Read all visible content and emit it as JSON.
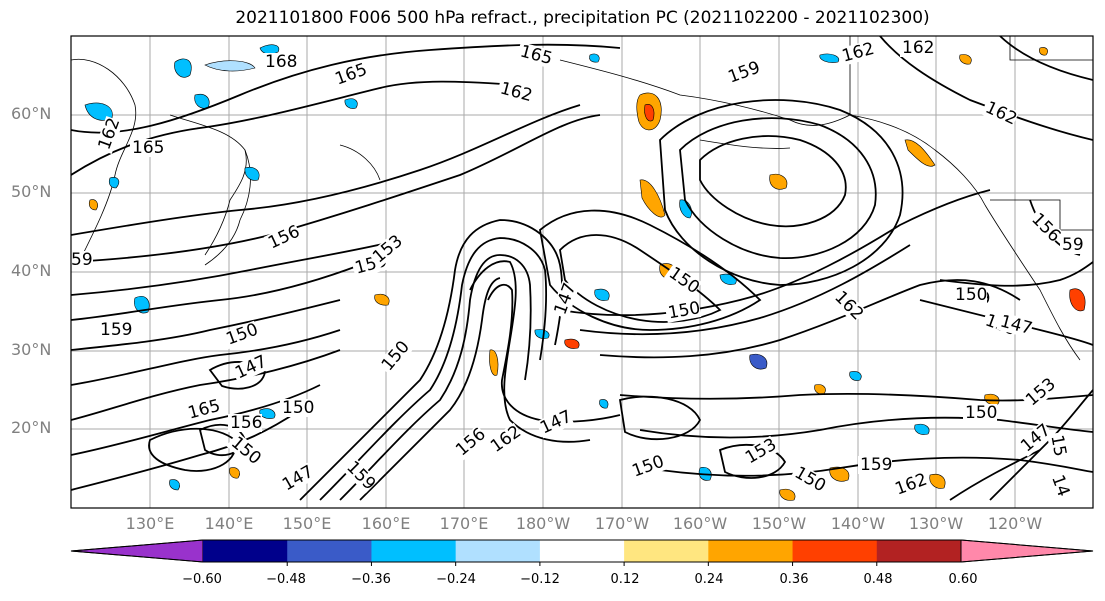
{
  "title": "2021101800 F006 500 hPa refract., precipitation PC (2021102200 - 2021102300)",
  "lat_labels": [
    "60°N",
    "50°N",
    "40°N",
    "30°N",
    "20°N"
  ],
  "lon_labels": [
    "130°E",
    "140°E",
    "150°E",
    "160°E",
    "170°E",
    "180°W",
    "170°W",
    "160°W",
    "150°W",
    "140°W",
    "130°W",
    "120°W"
  ],
  "contour_labels": [
    "168",
    "165",
    "165",
    "162",
    "162",
    "159",
    "162",
    "162",
    "165",
    "162",
    "59",
    "159",
    "156",
    "159",
    "153",
    "150",
    "147",
    "150",
    "147",
    "150",
    "150",
    "150",
    "165",
    "156",
    "150",
    "147",
    "159",
    "147",
    "162",
    "156",
    "150",
    "153",
    "150",
    "162",
    "159",
    "159",
    "150",
    "153",
    "147",
    "15",
    "14",
    "159",
    "162",
    "156",
    "150",
    "147",
    "59"
  ],
  "colorbar": {
    "colors": [
      "#9932cc",
      "#00008b",
      "#3a5bc8",
      "#00bfff",
      "#b0e0ff",
      "#ffffff",
      "#ffe680",
      "#ffa500",
      "#ff4000",
      "#b22222",
      "#ff88aa"
    ],
    "tick_labels": [
      "−0.60",
      "−0.48",
      "−0.36",
      "−0.24",
      "−0.12",
      "0.12",
      "0.24",
      "0.36",
      "0.48",
      "0.60"
    ]
  },
  "style": {
    "grid_color": "#aaaaaa",
    "contour_color": "#000000",
    "axis_label_color": "#808080"
  }
}
